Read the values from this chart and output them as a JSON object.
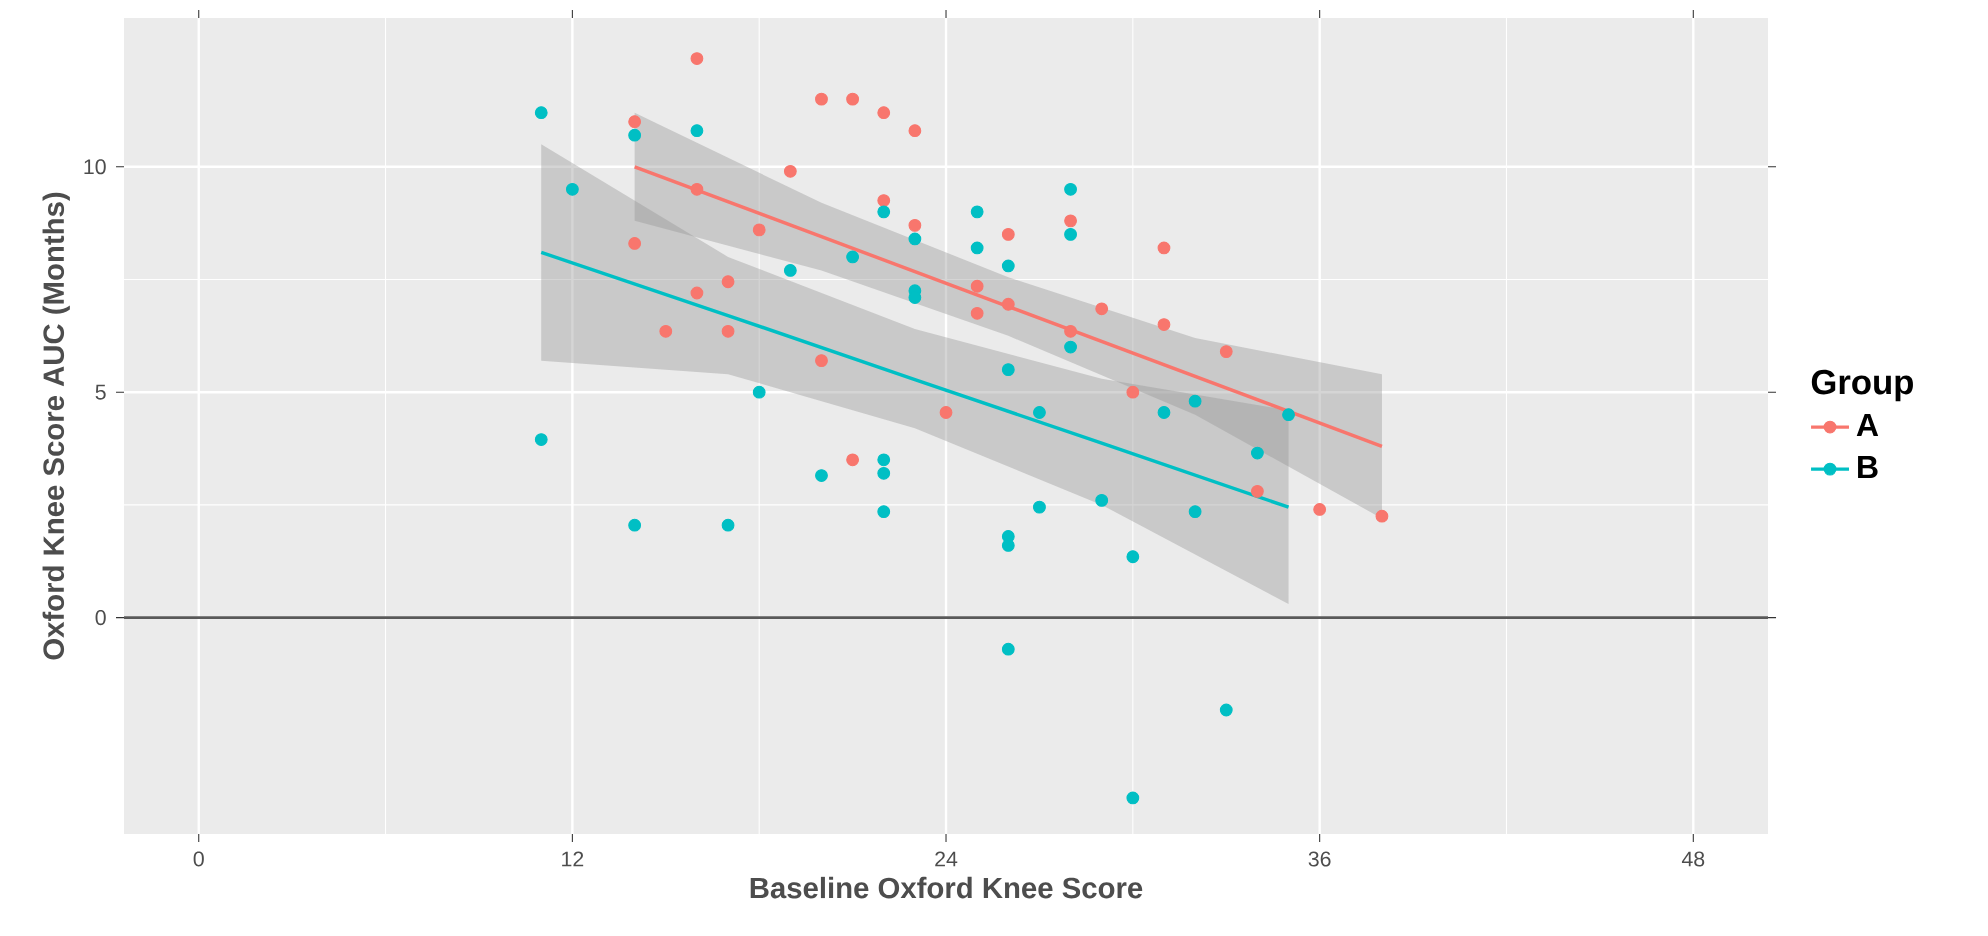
{
  "chart_data": {
    "type": "scatter",
    "xlabel": "Baseline Oxford Knee Score",
    "ylabel": "Oxford Knee Score AUC (Months)",
    "legend_title": "Group",
    "legend": "right",
    "grid": true,
    "xlim": [
      -2.4,
      50.4
    ],
    "ylim": [
      -4.8,
      13.3
    ],
    "xticks": [
      0,
      12,
      24,
      36,
      48
    ],
    "yticks": [
      0,
      5,
      10
    ],
    "ref_lines": [
      {
        "axis": "y",
        "value": 0,
        "color": "#595959"
      }
    ],
    "series": [
      {
        "name": "A",
        "color": "#f8766d",
        "marker": "circle",
        "x": [
          16,
          14,
          20,
          21,
          22,
          23,
          19,
          16,
          22,
          14,
          23,
          26,
          28,
          31,
          18,
          17,
          16,
          15,
          17,
          25,
          25,
          26,
          28,
          29,
          31,
          33,
          20,
          30,
          24,
          21,
          34,
          36,
          38
        ],
        "values": [
          12.4,
          11.0,
          11.5,
          11.5,
          11.2,
          10.8,
          9.9,
          9.5,
          9.25,
          8.3,
          8.7,
          8.5,
          8.8,
          8.2,
          8.6,
          7.45,
          7.2,
          6.35,
          6.35,
          7.35,
          6.75,
          6.95,
          6.35,
          6.85,
          6.5,
          5.9,
          5.7,
          5.0,
          4.55,
          3.5,
          2.8,
          2.4,
          2.25
        ]
      },
      {
        "name": "B",
        "color": "#00bfc4",
        "marker": "circle",
        "x": [
          11,
          12,
          14,
          16,
          11,
          14,
          17,
          18,
          19,
          21,
          22,
          23,
          23,
          23,
          20,
          22,
          22,
          22,
          25,
          25,
          26,
          28,
          28,
          28,
          26,
          27,
          26,
          26,
          27,
          29,
          30,
          31,
          32,
          32,
          34,
          35,
          26,
          33,
          30
        ],
        "values": [
          11.2,
          9.5,
          10.7,
          10.8,
          3.95,
          2.05,
          2.05,
          5.0,
          7.7,
          8.0,
          9.0,
          8.4,
          7.25,
          7.1,
          3.15,
          3.5,
          3.2,
          2.35,
          9.0,
          8.2,
          7.8,
          9.5,
          8.5,
          6.0,
          5.5,
          4.55,
          1.8,
          1.6,
          2.45,
          2.6,
          1.35,
          4.55,
          4.8,
          2.35,
          3.65,
          4.5,
          -0.7,
          -2.05,
          -4.0
        ]
      },
      {
        "type": "line",
        "color": "#f8766d",
        "marker": "none",
        "line_style": "solid",
        "x": [
          14,
          20,
          26,
          32,
          38
        ],
        "values": [
          10.0,
          8.45,
          6.9,
          5.35,
          3.8
        ],
        "lower": [
          8.8,
          7.7,
          6.25,
          4.5,
          2.2
        ],
        "upper": [
          11.2,
          9.2,
          7.55,
          6.2,
          5.4
        ]
      },
      {
        "type": "line",
        "color": "#00bfc4",
        "marker": "none",
        "line_style": "solid",
        "x": [
          11,
          17,
          23,
          29,
          35
        ],
        "values": [
          8.1,
          6.7,
          5.28,
          3.87,
          2.45
        ],
        "lower": [
          5.7,
          5.4,
          4.2,
          2.5,
          0.3
        ],
        "upper": [
          10.5,
          8.0,
          6.4,
          5.3,
          4.6
        ]
      }
    ]
  }
}
